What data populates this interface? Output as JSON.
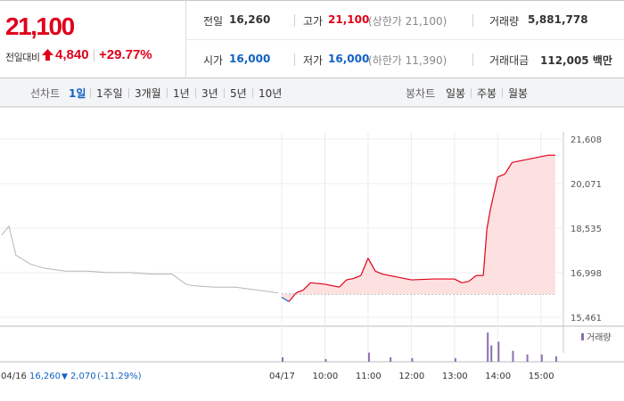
{
  "header": {
    "price": "21,100",
    "change_label": "전일대비",
    "change_amount": "4,840",
    "change_percent": "+29.77%",
    "up_color": "#e0001b",
    "down_color": "#1261c4",
    "stats": {
      "prev_label": "전일",
      "prev_value": "16,260",
      "high_label": "고가",
      "high_value": "21,100",
      "upper_limit": "(상한가 21,100)",
      "volume_label": "거래량",
      "volume_value": "5,881,778",
      "open_label": "시가",
      "open_value": "16,000",
      "low_label": "저가",
      "low_value": "16,000",
      "lower_limit": "(하한가 11,390)",
      "amount_label": "거래대금",
      "amount_value": "112,005 백만"
    }
  },
  "tabs": {
    "line_label": "선차트",
    "line_periods": [
      "1일",
      "1주일",
      "3개월",
      "1년",
      "3년",
      "5년",
      "10년"
    ],
    "active_period": "1일",
    "candle_label": "봉차트",
    "candle_periods": [
      "일봉",
      "주봉",
      "월봉"
    ]
  },
  "chart_data": {
    "type": "line",
    "y_ticks": [
      "21,608",
      "20,071",
      "18,535",
      "16,998",
      "15,461"
    ],
    "ylim": [
      15461,
      21608
    ],
    "reference_price": 16260,
    "x_tick_labels": [
      "04/16",
      "04/17",
      "10:00",
      "11:00",
      "12:00",
      "13:00",
      "14:00",
      "15:00"
    ],
    "prev_day_summary": {
      "date": "04/16",
      "close": "16,260",
      "change": "2,070",
      "change_percent": "(-11.29%)"
    },
    "volume_legend": "거래량",
    "prev_day_series": {
      "x": [
        "04/16 09:00",
        "04/16 09:10",
        "04/16 09:20",
        "04/16 09:40",
        "04/16 10:00",
        "04/16 10:30",
        "04/16 11:00",
        "04/16 11:30",
        "04/16 12:00",
        "04/16 12:30",
        "04/16 13:00",
        "04/16 13:20",
        "04/16 13:30",
        "04/16 14:00",
        "04/16 14:30",
        "04/16 15:00",
        "04/16 15:30"
      ],
      "values": [
        18300,
        18600,
        17600,
        17300,
        17150,
        17050,
        17050,
        17000,
        17000,
        16950,
        16950,
        16600,
        16550,
        16500,
        16500,
        16400,
        16300
      ]
    },
    "today_series": {
      "x": [
        "04/17 09:00",
        "04/17 09:10",
        "04/17 09:20",
        "04/17 09:30",
        "04/17 09:40",
        "04/17 10:00",
        "04/17 10:20",
        "04/17 10:30",
        "04/17 10:40",
        "04/17 10:50",
        "04/17 11:00",
        "04/17 11:10",
        "04/17 11:20",
        "04/17 11:40",
        "04/17 12:00",
        "04/17 12:30",
        "04/17 13:00",
        "04/17 13:10",
        "04/17 13:20",
        "04/17 13:30",
        "04/17 13:40",
        "04/17 13:45",
        "04/17 13:50",
        "04/17 14:00",
        "04/17 14:10",
        "04/17 14:20",
        "04/17 14:40",
        "04/17 15:00",
        "04/17 15:10",
        "04/17 15:20"
      ],
      "values": [
        16150,
        16000,
        16300,
        16400,
        16650,
        16600,
        16500,
        16750,
        16800,
        16900,
        17500,
        17050,
        16950,
        16850,
        16750,
        16780,
        16780,
        16650,
        16700,
        16900,
        16900,
        18500,
        19200,
        20300,
        20400,
        20800,
        20900,
        21000,
        21050,
        21050
      ]
    },
    "volume": {
      "x": [
        "04/17 09:00",
        "04/17 10:00",
        "04/17 11:00",
        "04/17 11:30",
        "04/17 12:00",
        "04/17 13:00",
        "04/17 13:45",
        "04/17 13:50",
        "04/17 14:00",
        "04/17 14:20",
        "04/17 14:40",
        "04/17 15:00",
        "04/17 15:20"
      ],
      "values": [
        5,
        3,
        10,
        5,
        4,
        4,
        32,
        18,
        22,
        12,
        8,
        8,
        6
      ]
    }
  }
}
